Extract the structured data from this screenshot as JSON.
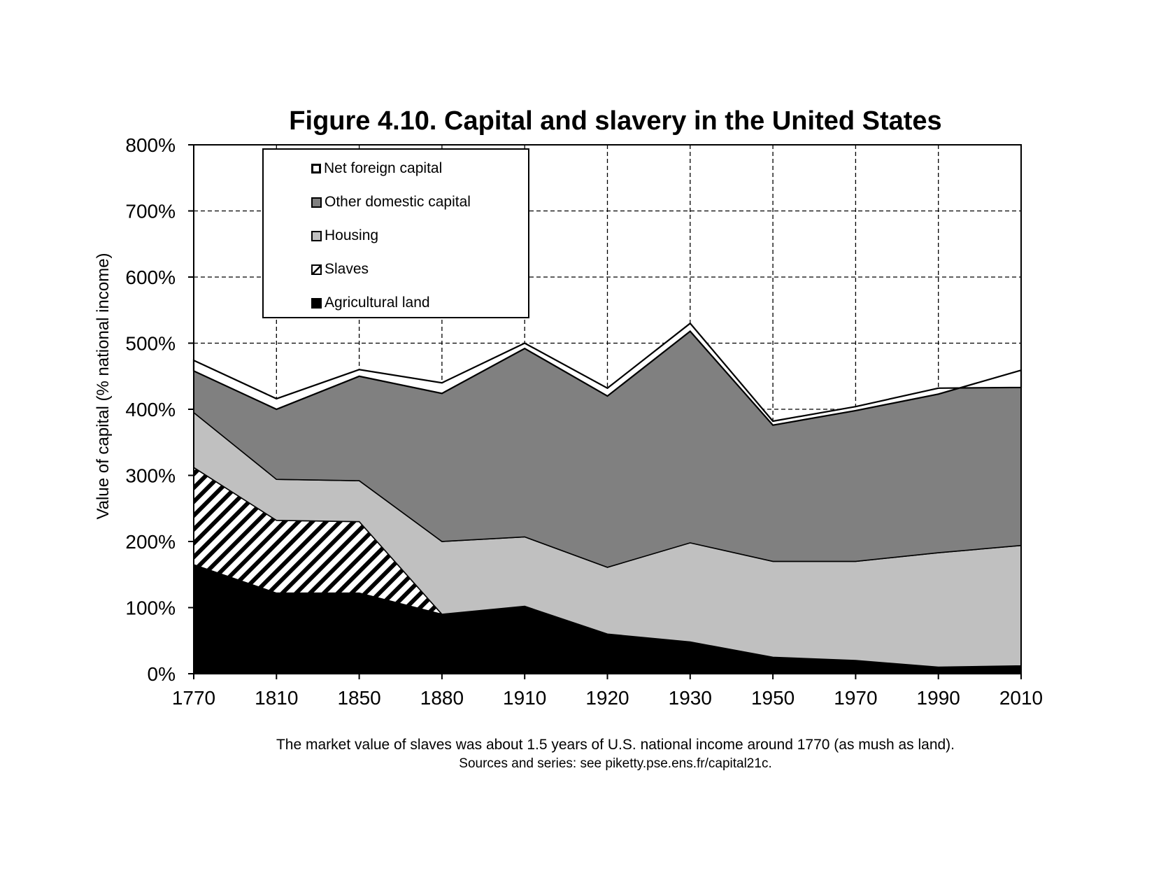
{
  "chart_data": {
    "type": "area",
    "title": "Figure 4.10. Capital and slavery in the United States",
    "ylabel": "Value of capital (% national income)",
    "xlabel": "",
    "ylim": [
      0,
      800
    ],
    "yticks": [
      "0%",
      "100%",
      "200%",
      "300%",
      "400%",
      "500%",
      "600%",
      "700%",
      "800%"
    ],
    "categories": [
      "1770",
      "1810",
      "1850",
      "1880",
      "1910",
      "1920",
      "1930",
      "1950",
      "1970",
      "1990",
      "2010"
    ],
    "grid": "dashed",
    "legend_position": "top-left",
    "series": [
      {
        "name": "Agricultural land",
        "fill": "#000000",
        "values": [
          165,
          122,
          122,
          90,
          102,
          60,
          48,
          25,
          20,
          10,
          12
        ]
      },
      {
        "name": "Slaves",
        "fill": "hatch",
        "values": [
          147,
          110,
          108,
          0,
          0,
          0,
          0,
          0,
          0,
          0,
          0
        ]
      },
      {
        "name": "Housing",
        "fill": "#c0c0c0",
        "values": [
          83,
          62,
          62,
          110,
          105,
          101,
          150,
          145,
          150,
          173,
          182
        ]
      },
      {
        "name": "Other domestic capital",
        "fill": "#808080",
        "values": [
          63,
          106,
          158,
          224,
          285,
          259,
          320,
          206,
          228,
          240,
          265
        ]
      },
      {
        "name": "Net foreign capital",
        "fill": "#ffffff",
        "values": [
          16,
          16,
          10,
          16,
          8,
          12,
          12,
          6,
          6,
          9,
          -26
        ]
      }
    ],
    "legend": [
      "Net foreign capital",
      "Other domestic capital",
      "Housing",
      "Slaves",
      "Agricultural land"
    ],
    "notes": [
      "The market value of slaves was about 1.5 years of U.S. national income around 1770 (as mush as land).",
      "Sources and series: see piketty.pse.ens.fr/capital21c."
    ]
  }
}
